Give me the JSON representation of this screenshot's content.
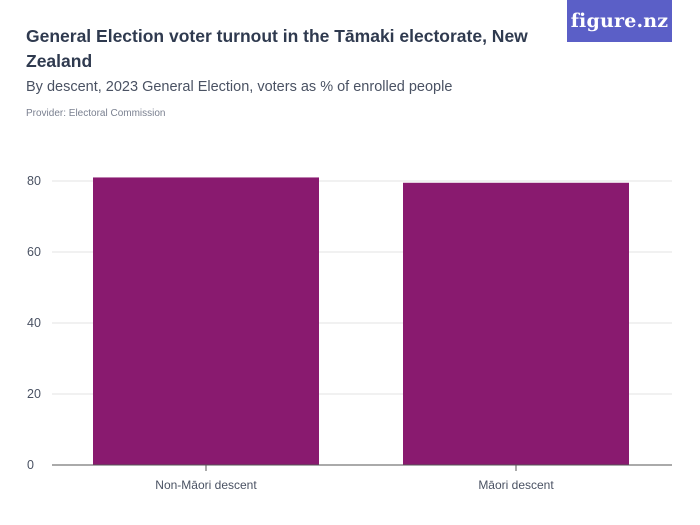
{
  "header": {
    "title": "General Election voter turnout in the Tāmaki electorate, New Zealand",
    "subtitle": "By descent, 2023 General Election, voters as % of enrolled people",
    "provider": "Provider: Electoral Commission",
    "logo": "figure.nz"
  },
  "chart_data": {
    "type": "bar",
    "title": "General Election voter turnout in the Tāmaki electorate, New Zealand",
    "subtitle": "By descent, 2023 General Election, voters as % of enrolled people",
    "categories": [
      "Non-Māori descent",
      "Māori descent"
    ],
    "values": [
      81,
      79.5
    ],
    "xlabel": "",
    "ylabel": "",
    "ylim": [
      0,
      80
    ],
    "yticks": [
      0,
      20,
      40,
      60,
      80
    ],
    "grid": true,
    "bar_color": "#891a6f"
  },
  "colors": {
    "bar": "#891a6f",
    "gridline": "#e3e3e3",
    "axis": "#555555",
    "logo_bg": "#5b5fc7",
    "title": "#2f3a4f"
  }
}
